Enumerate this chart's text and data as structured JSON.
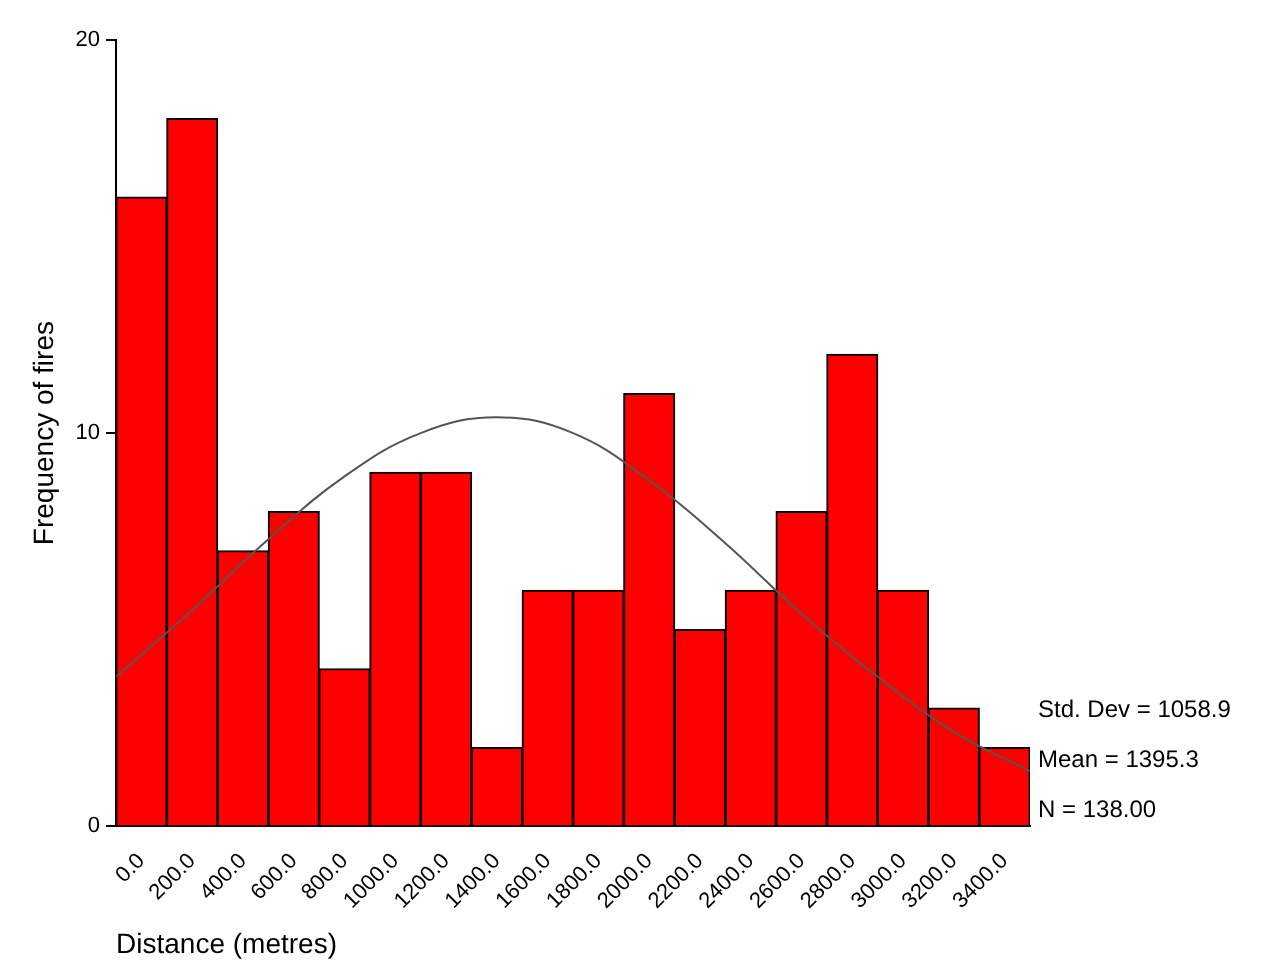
{
  "chart_data": {
    "type": "histogram",
    "xlabel": "Distance (metres)",
    "ylabel": "Frequency of fires",
    "bins": [
      -100,
      100,
      300,
      500,
      700,
      900,
      1100,
      1300,
      1500,
      1700,
      1900,
      2100,
      2300,
      2500,
      2700,
      2900,
      3100,
      3300,
      3500
    ],
    "values": [
      16,
      18,
      7,
      8,
      4,
      9,
      9,
      2,
      6,
      6,
      11,
      5,
      6,
      8,
      12,
      6,
      3,
      2
    ],
    "color": "#ff0000",
    "series": [
      {
        "type": "line",
        "color": "#555555",
        "x": [
          -100,
          200,
          500,
          800,
          1100,
          1400,
          1700,
          2000,
          2300,
          2600,
          2900,
          3200,
          3500
        ],
        "values": [
          3.8,
          5.5,
          7.3,
          8.9,
          10.0,
          10.4,
          10.0,
          8.8,
          7.2,
          5.4,
          3.8,
          2.4,
          1.4
        ]
      }
    ],
    "xlim": [
      -100,
      3500
    ],
    "xticks": [
      {
        "value": 0,
        "label": "0.0"
      },
      {
        "value": 200,
        "label": "200.0"
      },
      {
        "value": 400,
        "label": "400.0"
      },
      {
        "value": 600,
        "label": "600.0"
      },
      {
        "value": 800,
        "label": "800.0"
      },
      {
        "value": 1000,
        "label": "1000.0"
      },
      {
        "value": 1200,
        "label": "1200.0"
      },
      {
        "value": 1400,
        "label": "1400.0"
      },
      {
        "value": 1600,
        "label": "1600.0"
      },
      {
        "value": 1800,
        "label": "1800.0"
      },
      {
        "value": 2000,
        "label": "2000.0"
      },
      {
        "value": 2200,
        "label": "2200.0"
      },
      {
        "value": 2400,
        "label": "2400.0"
      },
      {
        "value": 2600,
        "label": "2600.0"
      },
      {
        "value": 2800,
        "label": "2800.0"
      },
      {
        "value": 3000,
        "label": "3000.0"
      },
      {
        "value": 3200,
        "label": "3200.0"
      },
      {
        "value": 3400,
        "label": "3400.0"
      }
    ],
    "ylim": [
      0,
      20
    ],
    "yticks": [
      0,
      10,
      20
    ],
    "grid": false,
    "legend": false,
    "annotations": [
      "Std. Dev = 1058.9",
      "Mean = 1395.3",
      "N = 138.00"
    ]
  }
}
